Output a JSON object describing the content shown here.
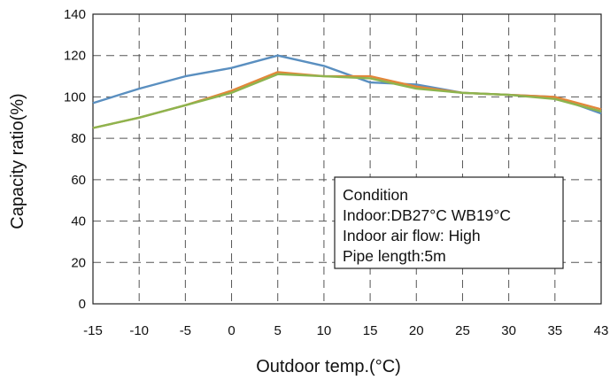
{
  "chart_data": {
    "type": "line",
    "xlabel": "Outdoor temp.(°C)",
    "ylabel": "Capacity ratio(%)",
    "ylim": [
      0,
      140
    ],
    "yticks": [
      0,
      20,
      40,
      60,
      80,
      100,
      120,
      140
    ],
    "categories": [
      "-15",
      "-10",
      "-5",
      "0",
      "5",
      "10",
      "15",
      "20",
      "25",
      "30",
      "35",
      "43"
    ],
    "grid": true,
    "series": [
      {
        "color": "#5a8fc0",
        "values": [
          97,
          104,
          110,
          114,
          120,
          115,
          107,
          106,
          102,
          101,
          100,
          92
        ]
      },
      {
        "color": "#e2873a",
        "values": [
          85,
          90,
          96,
          103,
          112,
          110,
          110,
          105,
          102,
          101,
          100,
          94
        ]
      },
      {
        "color": "#8db44e",
        "values": [
          85,
          90,
          96,
          102,
          111,
          110,
          109,
          104,
          102,
          101,
          99,
          93
        ]
      }
    ],
    "annotation": {
      "lines": [
        "Condition",
        "Indoor:DB27°C WB19°C",
        "Indoor air flow: High",
        "Pipe length:5m"
      ]
    }
  }
}
